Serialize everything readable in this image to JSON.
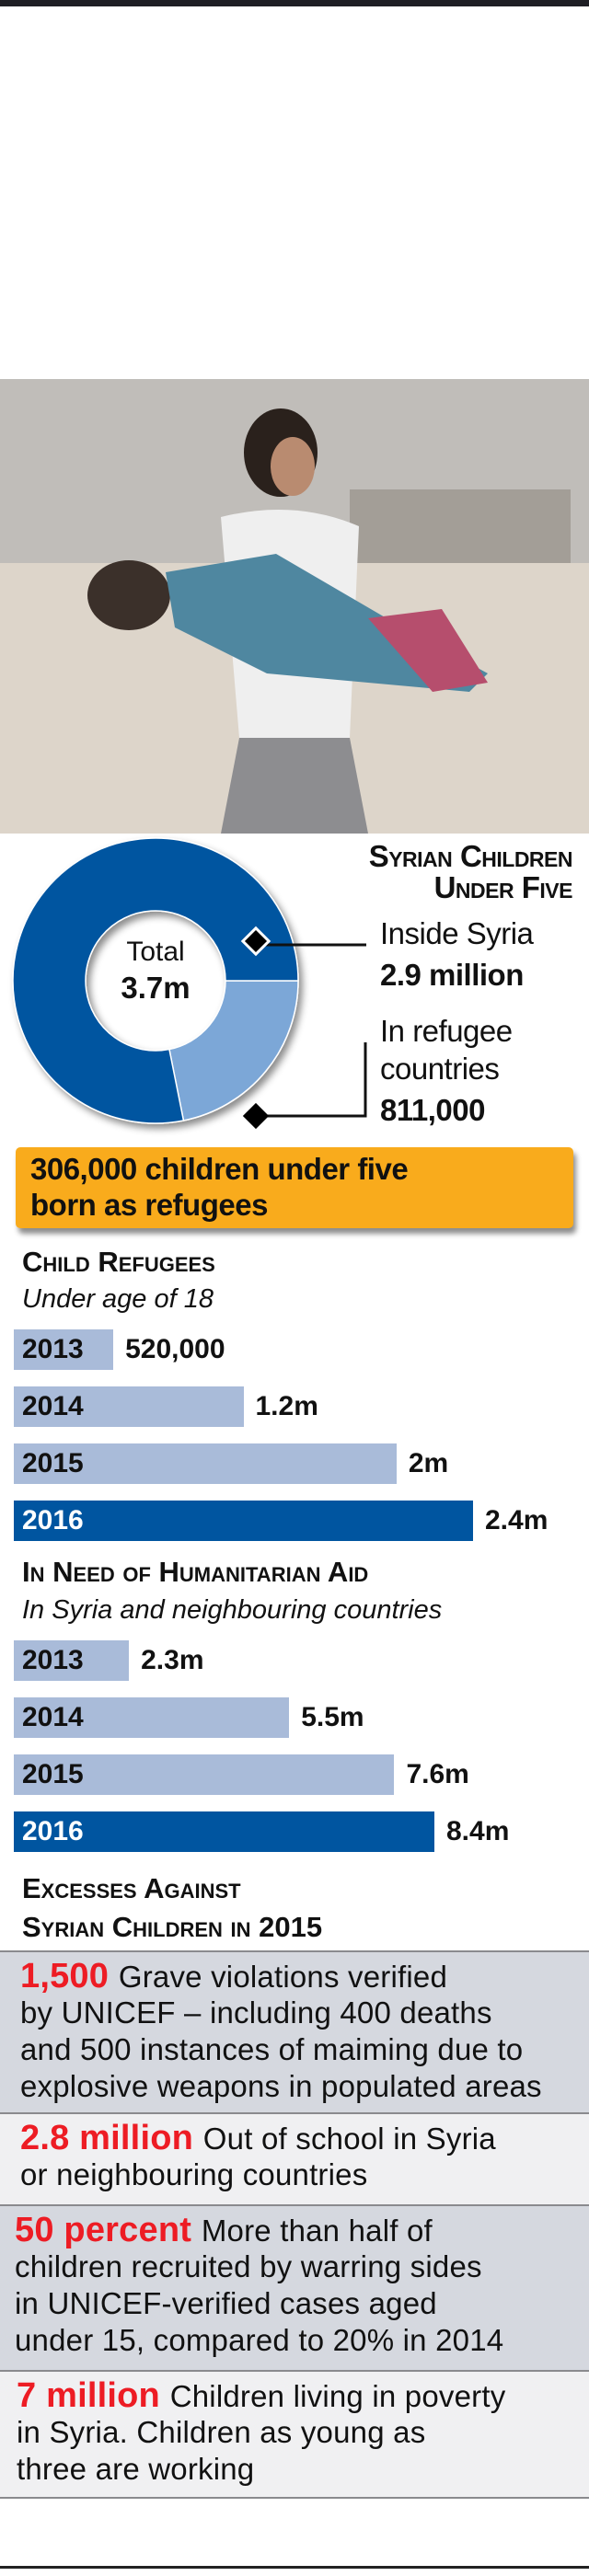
{
  "colors": {
    "dark_blue": "#0055a0",
    "light_blue_slice": "#7ba7d7",
    "light_bar": "#a9bbd9",
    "orange": "#f9ab1c",
    "red": "#ed1c24"
  },
  "photo": {
    "description_icon": "photo-syrian-man-carrying-child"
  },
  "donut": {
    "title_line1": "Syrian Children",
    "title_line2": "Under Five",
    "center_label": "Total",
    "center_value": "3.7m",
    "inside_label": "Inside Syria",
    "inside_value": "2.9 million",
    "refugee_label_line1": "In refugee",
    "refugee_label_line2": "countries",
    "refugee_value": "811,000"
  },
  "callout": {
    "line1": "306,000 children under five",
    "line2": "born as refugees"
  },
  "refugees": {
    "heading": "Child Refugees",
    "subtitle": "Under age of 18"
  },
  "aid": {
    "heading": "In Need of Humanitarian Aid",
    "subtitle": "In Syria and neighbouring countries"
  },
  "excesses": {
    "heading_line1": "Excesses Against",
    "heading_line2": "Syrian Children in 2015",
    "rows": [
      {
        "highlight": "1,500",
        "lines": [
          "Grave violations verified",
          "by UNICEF – including 400 deaths",
          "and 500 instances of maiming due to",
          "explosive weapons in populated areas"
        ]
      },
      {
        "highlight": "2.8 million",
        "lines": [
          "Out of school in Syria",
          "or neighbouring countries"
        ]
      },
      {
        "highlight": "50 percent",
        "lines": [
          "More than half of",
          "children recruited by warring sides",
          "in UNICEF-verified cases aged",
          "under 15, compared to 20% in 2014"
        ]
      },
      {
        "highlight": "7 million",
        "lines": [
          "Children living in poverty",
          "in Syria. Children as young as",
          "three are working"
        ]
      }
    ]
  },
  "chart_data": [
    {
      "type": "pie",
      "variant": "donut",
      "title": "Syrian Children Under Five",
      "total_label": "Total 3.7m",
      "slices": [
        {
          "name": "Inside Syria",
          "value": 2.9,
          "label": "2.9 million",
          "color": "#0055a0"
        },
        {
          "name": "In refugee countries",
          "value": 0.811,
          "label": "811,000",
          "color": "#7ba7d7"
        }
      ]
    },
    {
      "type": "bar",
      "orientation": "horizontal",
      "title": "Child Refugees",
      "subtitle": "Under age of 18",
      "categories": [
        "2013",
        "2014",
        "2015",
        "2016"
      ],
      "values": [
        0.52,
        1.2,
        2,
        2.4
      ],
      "value_labels": [
        "520,000",
        "1.2m",
        "2m",
        "2.4m"
      ],
      "unit": "million",
      "highlight": "2016"
    },
    {
      "type": "bar",
      "orientation": "horizontal",
      "title": "In Need of Humanitarian Aid",
      "subtitle": "In Syria and neighbouring countries",
      "categories": [
        "2013",
        "2014",
        "2015",
        "2016"
      ],
      "values": [
        2.3,
        5.5,
        7.6,
        8.4
      ],
      "value_labels": [
        "2.3m",
        "5.5m",
        "7.6m",
        "8.4m"
      ],
      "unit": "million",
      "highlight": "2016"
    }
  ]
}
